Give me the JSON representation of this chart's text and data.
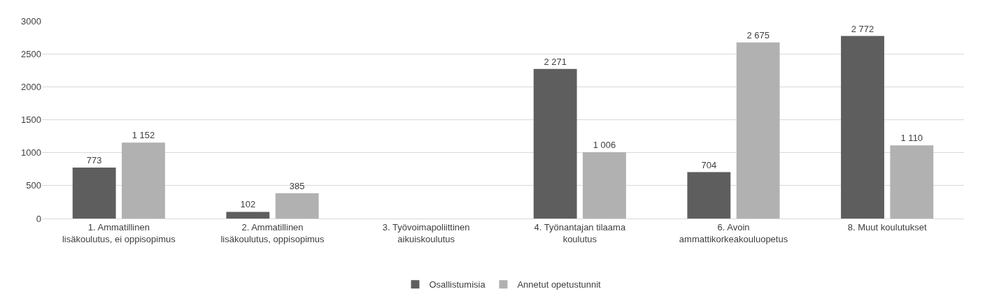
{
  "chart_data": {
    "type": "bar",
    "categories": [
      "1. Ammatillinen\nlisäkoulutus, ei oppisopimus",
      "2. Ammatillinen\nlisäkoulutus, oppisopimus",
      "3. Työvoimapoliittinen\naikuiskoulutus",
      "4. Työnantajan tilaama\nkoulutus",
      "6. Avoin\nammattikorkeakouluopetus",
      "8. Muut koulutukset"
    ],
    "series": [
      {
        "name": "Osallistumisia",
        "color": "#5e5e5e",
        "values": [
          773,
          102,
          null,
          2271,
          704,
          2772
        ],
        "value_labels": [
          "773",
          "102",
          null,
          "2 271",
          "704",
          "2 772"
        ]
      },
      {
        "name": "Annetut opetustunnit",
        "color": "#b1b1b1",
        "values": [
          1152,
          385,
          null,
          1006,
          2675,
          1110
        ],
        "value_labels": [
          "1 152",
          "385",
          null,
          "1 006",
          "2 675",
          "1 110"
        ]
      }
    ],
    "ylim": [
      0,
      3000
    ],
    "yticks": [
      0,
      500,
      1000,
      1500,
      2000,
      2500,
      3000
    ],
    "grid": "y",
    "legend": "bottom"
  }
}
